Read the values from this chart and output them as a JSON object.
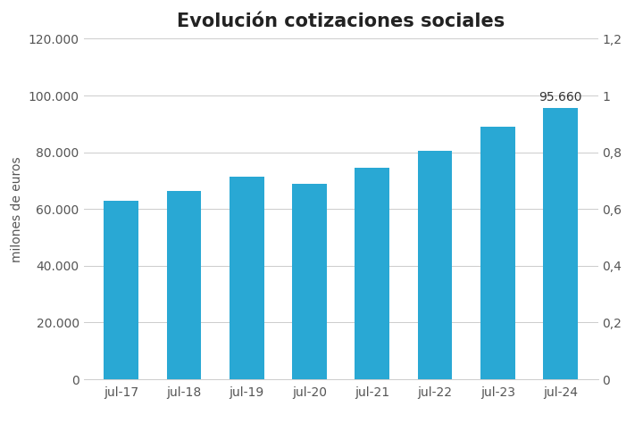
{
  "title": "Evolución cotizaciones sociales",
  "categories": [
    "jul-17",
    "jul-18",
    "jul-19",
    "jul-20",
    "jul-21",
    "jul-22",
    "jul-23",
    "jul-24"
  ],
  "values": [
    63000,
    66500,
    71500,
    69000,
    74500,
    80500,
    89000,
    95660
  ],
  "bar_color": "#29a8d4",
  "ylabel_left": "milones de euros",
  "ylim_left": [
    0,
    120000
  ],
  "ylim_right": [
    0,
    1.2
  ],
  "yticks_left": [
    0,
    20000,
    40000,
    60000,
    80000,
    100000,
    120000
  ],
  "yticks_right": [
    0,
    0.2,
    0.4,
    0.6,
    0.8,
    1.0,
    1.2
  ],
  "annotation_label": "95.660",
  "annotation_index": 7,
  "annotation_value": 95660,
  "background_color": "#ffffff",
  "title_fontsize": 15,
  "tick_fontsize": 10,
  "label_fontsize": 10
}
